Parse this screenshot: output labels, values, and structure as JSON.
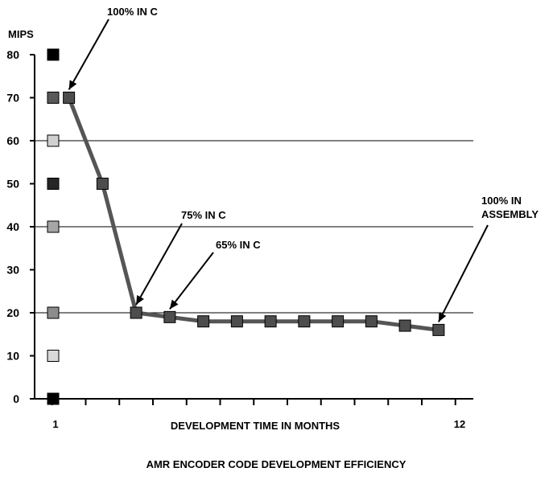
{
  "chart_data": {
    "type": "line",
    "title": "AMR ENCODER CODE DEVELOPMENT EFFICIENCY",
    "ylabel": "MIPS",
    "xlabel": "DEVELOPMENT TIME IN MONTHS",
    "ylim": [
      0,
      80
    ],
    "yticks": [
      "0",
      "10",
      "20",
      "30",
      "40",
      "50",
      "60",
      "70",
      "80"
    ],
    "x_tick_labels": {
      "first": "1",
      "last": "12"
    },
    "grid": "horizontal lines at 20, 40, 60",
    "legend_markers": [
      {
        "value": 0,
        "color": "#000000"
      },
      {
        "value": 10,
        "color": "#d9d9d9"
      },
      {
        "value": 20,
        "color": "#8c8c8c"
      },
      {
        "value": 40,
        "color": "#a6a6a6"
      },
      {
        "value": 50,
        "color": "#262626"
      },
      {
        "value": 60,
        "color": "#d0d0d0"
      },
      {
        "value": 70,
        "color": "#595959"
      },
      {
        "value": 80,
        "color": "#000000"
      }
    ],
    "series": [
      {
        "x": [
          1.5,
          2.5,
          3.5,
          4.5,
          5.5,
          6.5,
          7.5,
          8.5,
          9.5,
          10.5,
          11.5,
          12.5
        ],
        "values": [
          70,
          50,
          20,
          19,
          18,
          18,
          18,
          18,
          18,
          18,
          17,
          16
        ],
        "color": "#555555",
        "marker_color": "#4d4d4d"
      }
    ],
    "annotations": [
      {
        "lines": [
          "100% IN C"
        ],
        "x": 1.5,
        "y": 70
      },
      {
        "lines": [
          "75% IN C"
        ],
        "x": 3.5,
        "y": 20
      },
      {
        "lines": [
          "65% IN C"
        ],
        "x": 4.5,
        "y": 19
      },
      {
        "lines": [
          "100% IN",
          "ASSEMBLY"
        ],
        "x": 12.5,
        "y": 16
      }
    ]
  }
}
